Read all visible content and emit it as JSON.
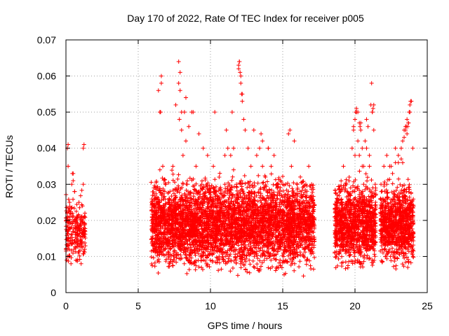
{
  "chart_data": {
    "type": "scatter",
    "title": "Day 170 of 2022, Rate Of TEC Index for receiver p005",
    "xlabel": "GPS time / hours",
    "ylabel": "ROTI / TECUs",
    "xlim": [
      0,
      25
    ],
    "ylim": [
      0,
      0.07
    ],
    "x_ticks": [
      "0",
      "5",
      "10",
      "15",
      "20",
      "25"
    ],
    "y_ticks": [
      "0",
      "0.01",
      "0.02",
      "0.03",
      "0.04",
      "0.05",
      "0.06",
      "0.07"
    ],
    "grid": true,
    "legend": "none",
    "marker": "+",
    "color": "#ff0000",
    "series": [
      {
        "x": [
          0.0,
          0.05,
          0.1,
          0.15,
          0.2,
          0.25,
          0.3,
          0.35,
          0.4,
          0.45,
          0.5,
          0.55,
          0.6,
          0.65,
          0.7,
          0.75,
          0.8,
          0.85,
          0.9,
          0.95,
          1.0,
          1.05,
          1.1,
          1.15,
          1.2,
          1.25,
          1.3,
          0.1,
          0.15,
          0.45,
          0.5,
          0.6,
          1.2,
          1.25,
          6.0,
          6.2,
          6.4,
          6.5,
          6.55,
          6.6,
          6.7,
          6.8,
          6.9,
          7.0,
          7.2,
          7.4,
          7.6,
          7.8,
          7.85,
          7.9,
          8.0,
          8.1,
          8.2,
          8.3,
          8.4,
          8.6,
          8.8,
          9.0,
          9.2,
          9.4,
          9.6,
          9.8,
          10.0,
          10.2,
          10.4,
          10.6,
          10.8,
          11.0,
          11.2,
          11.4,
          11.6,
          11.8,
          11.95,
          12.0,
          12.1,
          12.2,
          12.4,
          12.6,
          12.8,
          13.0,
          13.2,
          13.4,
          13.6,
          13.8,
          14.0,
          14.2,
          14.4,
          14.6,
          14.8,
          15.0,
          15.2,
          15.4,
          15.6,
          15.8,
          16.0,
          16.2,
          16.4,
          16.6,
          16.8,
          17.0,
          17.1,
          6.4,
          6.5,
          6.6,
          7.6,
          7.8,
          7.9,
          8.0,
          8.3,
          8.5,
          8.7,
          9.2,
          9.5,
          10.3,
          11.0,
          11.1,
          11.5,
          11.6,
          11.95,
          12.0,
          12.05,
          12.1,
          12.15,
          12.2,
          12.3,
          13.5,
          13.6,
          14.0,
          15.4,
          15.5,
          18.7,
          18.8,
          19.0,
          19.2,
          19.4,
          19.6,
          19.8,
          19.9,
          20.0,
          20.1,
          20.2,
          20.3,
          20.4,
          20.5,
          20.6,
          20.8,
          21.0,
          21.1,
          21.2,
          21.3,
          21.4,
          19.9,
          20.0,
          20.05,
          20.1,
          20.2,
          20.3,
          20.35,
          20.4,
          20.5,
          20.6,
          20.7,
          20.8,
          20.9,
          21.0,
          21.15,
          21.2,
          21.25,
          21.3,
          21.8,
          22.0,
          22.2,
          22.4,
          22.6,
          22.8,
          23.0,
          23.2,
          23.3,
          23.4,
          23.5,
          23.6,
          23.7,
          23.8,
          23.9,
          24.0,
          22.2,
          22.5,
          22.8,
          23.0,
          23.2,
          23.3,
          23.4,
          23.5,
          23.55,
          23.6,
          23.65,
          23.7,
          23.75,
          23.8,
          23.85
        ],
        "y": [
          0.012,
          0.009,
          0.02,
          0.035,
          0.01,
          0.025,
          0.015,
          0.008,
          0.03,
          0.022,
          0.033,
          0.012,
          0.028,
          0.018,
          0.009,
          0.016,
          0.021,
          0.011,
          0.025,
          0.013,
          0.019,
          0.008,
          0.014,
          0.024,
          0.03,
          0.018,
          0.012,
          0.04,
          0.041,
          0.033,
          0.031,
          0.028,
          0.04,
          0.041,
          0.015,
          0.02,
          0.025,
          0.034,
          0.05,
          0.06,
          0.035,
          0.02,
          0.03,
          0.018,
          0.028,
          0.035,
          0.022,
          0.064,
          0.048,
          0.061,
          0.045,
          0.038,
          0.05,
          0.042,
          0.03,
          0.025,
          0.05,
          0.035,
          0.028,
          0.03,
          0.025,
          0.038,
          0.02,
          0.035,
          0.028,
          0.032,
          0.025,
          0.03,
          0.04,
          0.038,
          0.034,
          0.03,
          0.062,
          0.064,
          0.06,
          0.055,
          0.045,
          0.04,
          0.035,
          0.045,
          0.038,
          0.04,
          0.035,
          0.032,
          0.04,
          0.035,
          0.038,
          0.03,
          0.025,
          0.03,
          0.03,
          0.028,
          0.035,
          0.042,
          0.03,
          0.028,
          0.025,
          0.03,
          0.035,
          0.03,
          0.025,
          0.056,
          0.05,
          0.058,
          0.052,
          0.058,
          0.056,
          0.05,
          0.054,
          0.046,
          0.05,
          0.044,
          0.04,
          0.05,
          0.038,
          0.045,
          0.05,
          0.04,
          0.063,
          0.064,
          0.061,
          0.058,
          0.055,
          0.053,
          0.048,
          0.044,
          0.042,
          0.04,
          0.044,
          0.045,
          0.02,
          0.025,
          0.028,
          0.035,
          0.03,
          0.032,
          0.04,
          0.045,
          0.038,
          0.05,
          0.05,
          0.047,
          0.045,
          0.035,
          0.03,
          0.048,
          0.035,
          0.052,
          0.05,
          0.045,
          0.03,
          0.046,
          0.048,
          0.05,
          0.051,
          0.042,
          0.038,
          0.046,
          0.047,
          0.04,
          0.035,
          0.042,
          0.04,
          0.046,
          0.038,
          0.058,
          0.05,
          0.051,
          0.052,
          0.03,
          0.035,
          0.03,
          0.035,
          0.033,
          0.036,
          0.038,
          0.04,
          0.042,
          0.045,
          0.046,
          0.044,
          0.047,
          0.05,
          0.053,
          0.04,
          0.038,
          0.035,
          0.04,
          0.036,
          0.037,
          0.036,
          0.043,
          0.045,
          0.046,
          0.048,
          0.046,
          0.047,
          0.05,
          0.052,
          0.053
        ]
      }
    ],
    "dense_clusters": [
      {
        "x_range": [
          0.0,
          1.35
        ],
        "y_range": [
          0.005,
          0.03
        ],
        "density": 220
      },
      {
        "x_range": [
          5.9,
          17.2
        ],
        "y_range": [
          0.003,
          0.035
        ],
        "density": 4200
      },
      {
        "x_range": [
          18.6,
          21.45
        ],
        "y_range": [
          0.004,
          0.034
        ],
        "density": 1100
      },
      {
        "x_range": [
          21.75,
          24.05
        ],
        "y_range": [
          0.005,
          0.033
        ],
        "density": 900
      }
    ]
  }
}
